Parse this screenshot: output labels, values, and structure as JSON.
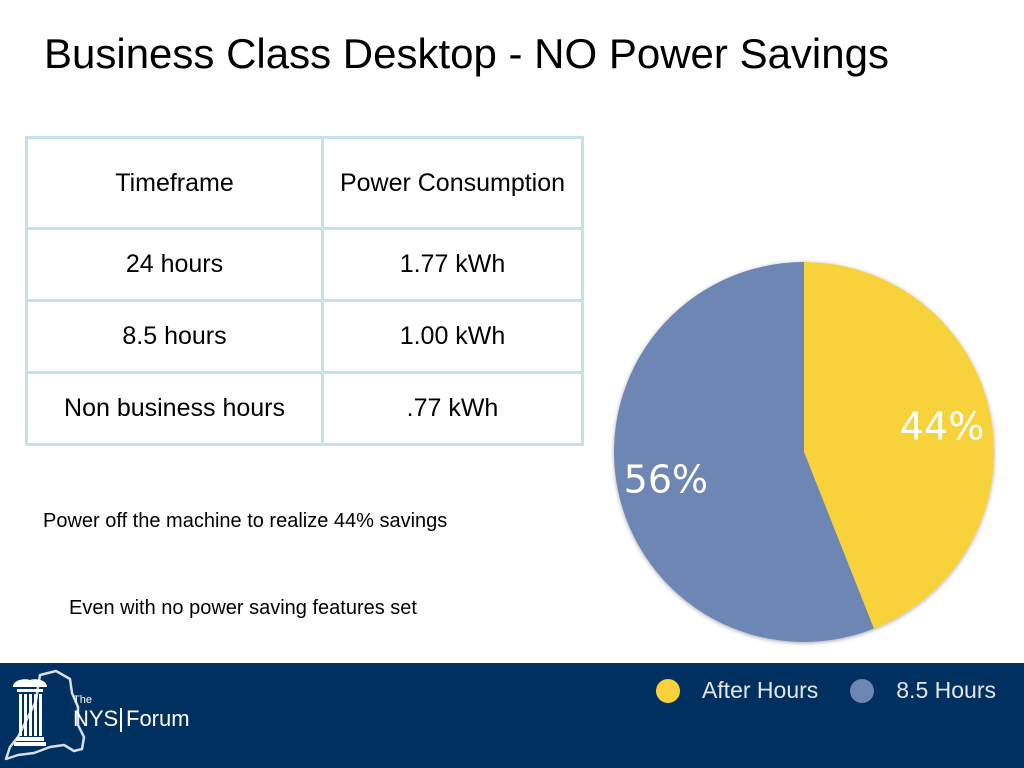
{
  "title": "Business Class Desktop - NO Power Savings",
  "table": {
    "headers": [
      "Timeframe",
      "Power Consumption"
    ],
    "rows": [
      [
        "24 hours",
        "1.77 kWh"
      ],
      [
        "8.5 hours",
        "1.00 kWh"
      ],
      [
        "Non business hours",
        ".77 kWh"
      ]
    ]
  },
  "notes": {
    "line1": "Power off the machine to realize 44% savings",
    "line2": "Even with no power saving features set"
  },
  "chart_data": {
    "type": "pie",
    "slices": [
      {
        "name": "After Hours",
        "value": 44,
        "label": "44%",
        "color": "#f8d23b"
      },
      {
        "name": "8.5 Hours",
        "value": 56,
        "label": "56%",
        "color": "#6d86b3"
      }
    ],
    "legend": {
      "position": "bottom-right",
      "entries": [
        "After Hours",
        "8.5 Hours"
      ]
    }
  },
  "footer": {
    "background": "#00305f",
    "logo_text": {
      "the": "The",
      "nys": "NYS",
      "forum": "Forum"
    }
  }
}
